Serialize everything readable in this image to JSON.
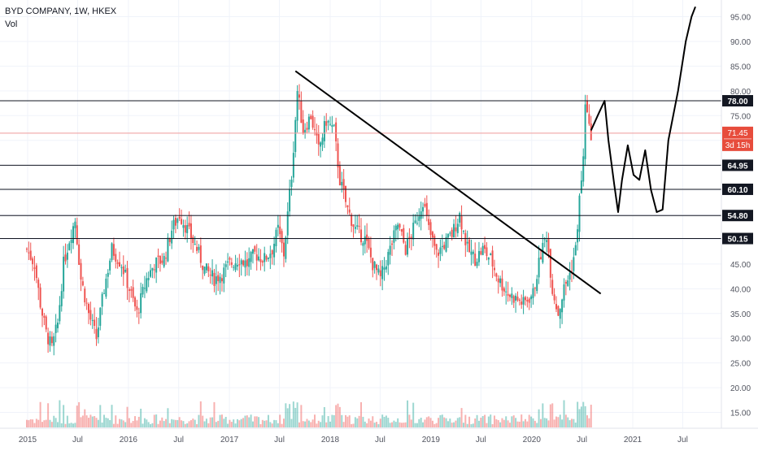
{
  "header": {
    "title": "BYD COMPANY, 1W, HKEX",
    "indicator": "Vol"
  },
  "colors": {
    "up": "#26a69a",
    "down": "#ef5350",
    "hline": "#131722",
    "trend": "#000000",
    "last_price_line": "#ef9a9a",
    "badge_dark": "#131722",
    "badge_red": "#e74c3c",
    "axis_text": "#50535e",
    "grid": "#f0f3fa"
  },
  "chart_data": {
    "type": "candlestick",
    "title": "BYD COMPANY, 1W, HKEX",
    "x_axis": {
      "tick_labels": [
        "2015",
        "Jul",
        "2016",
        "Jul",
        "2017",
        "Jul",
        "2018",
        "Jul",
        "2019",
        "Jul",
        "2020",
        "Jul",
        "2021",
        "Jul"
      ],
      "range": [
        "2014-12",
        "2021-10"
      ]
    },
    "y_axis": {
      "tick_labels": [
        "95.00",
        "90.00",
        "85.00",
        "80.00",
        "75.00",
        "70.00",
        "65.00",
        "60.00",
        "55.00",
        "50.00",
        "45.00",
        "40.00",
        "35.00",
        "30.00",
        "25.00",
        "20.00",
        "15.00"
      ],
      "range": [
        12.5,
        97.5
      ],
      "side": "right"
    },
    "grid": true,
    "price_series_weekly_close": [
      [
        "2014-12-29",
        48
      ],
      [
        "2015-01-26",
        45
      ],
      [
        "2015-02-16",
        37
      ],
      [
        "2015-03-09",
        31
      ],
      [
        "2015-03-30",
        28
      ],
      [
        "2015-04-20",
        33
      ],
      [
        "2015-05-11",
        45
      ],
      [
        "2015-06-01",
        50
      ],
      [
        "2015-06-22",
        54
      ],
      [
        "2015-07-13",
        42
      ],
      [
        "2015-08-10",
        35
      ],
      [
        "2015-09-07",
        30
      ],
      [
        "2015-10-05",
        40
      ],
      [
        "2015-11-02",
        48
      ],
      [
        "2015-12-07",
        45
      ],
      [
        "2016-01-04",
        40
      ],
      [
        "2016-02-01",
        35
      ],
      [
        "2016-03-07",
        42
      ],
      [
        "2016-04-04",
        45
      ],
      [
        "2016-05-09",
        46
      ],
      [
        "2016-06-06",
        52
      ],
      [
        "2016-07-04",
        55
      ],
      [
        "2016-08-01",
        52
      ],
      [
        "2016-09-05",
        48
      ],
      [
        "2016-10-03",
        44
      ],
      [
        "2016-11-07",
        42
      ],
      [
        "2016-12-05",
        43
      ],
      [
        "2017-01-02",
        45
      ],
      [
        "2017-02-06",
        46
      ],
      [
        "2017-03-06",
        45
      ],
      [
        "2017-04-03",
        47
      ],
      [
        "2017-05-08",
        46
      ],
      [
        "2017-06-05",
        48
      ],
      [
        "2017-06-26",
        52
      ],
      [
        "2017-07-17",
        47
      ],
      [
        "2017-08-14",
        63
      ],
      [
        "2017-09-04",
        80
      ],
      [
        "2017-09-25",
        72
      ],
      [
        "2017-10-23",
        75
      ],
      [
        "2017-11-20",
        68
      ],
      [
        "2017-12-18",
        74
      ],
      [
        "2018-01-15",
        72
      ],
      [
        "2018-02-05",
        62
      ],
      [
        "2018-03-05",
        56
      ],
      [
        "2018-04-02",
        52
      ],
      [
        "2018-05-07",
        50
      ],
      [
        "2018-06-04",
        45
      ],
      [
        "2018-07-02",
        42
      ],
      [
        "2018-08-06",
        48
      ],
      [
        "2018-09-03",
        53
      ],
      [
        "2018-10-01",
        48
      ],
      [
        "2018-11-05",
        53
      ],
      [
        "2018-12-03",
        58
      ],
      [
        "2018-12-24",
        52
      ],
      [
        "2019-01-21",
        47
      ],
      [
        "2019-02-18",
        49
      ],
      [
        "2019-03-18",
        51
      ],
      [
        "2019-04-15",
        55
      ],
      [
        "2019-05-13",
        48
      ],
      [
        "2019-06-10",
        46
      ],
      [
        "2019-07-08",
        48
      ],
      [
        "2019-08-05",
        46
      ],
      [
        "2019-09-02",
        42
      ],
      [
        "2019-10-07",
        39
      ],
      [
        "2019-11-04",
        38
      ],
      [
        "2019-12-02",
        37
      ],
      [
        "2020-01-06",
        39
      ],
      [
        "2020-02-03",
        47
      ],
      [
        "2020-02-24",
        51
      ],
      [
        "2020-03-16",
        40
      ],
      [
        "2020-04-06",
        35
      ],
      [
        "2020-04-27",
        40
      ],
      [
        "2020-05-18",
        43
      ],
      [
        "2020-06-08",
        48
      ],
      [
        "2020-06-22",
        58
      ],
      [
        "2020-07-06",
        66
      ],
      [
        "2020-07-13",
        78
      ],
      [
        "2020-07-27",
        72
      ],
      [
        "2020-08-03",
        71.45
      ]
    ],
    "horizontal_levels": [
      78.0,
      64.95,
      60.1,
      54.8,
      50.15
    ],
    "last_price": {
      "label": "71.45",
      "countdown": "3d 15h",
      "value": 71.45
    },
    "trendline": {
      "from": [
        "2017-08-28",
        84
      ],
      "to": [
        "2020-09-07",
        39
      ]
    },
    "projection_drawing": [
      [
        "2020-08-03",
        72
      ],
      [
        "2020-08-31",
        75.5
      ],
      [
        "2020-09-21",
        78
      ],
      [
        "2020-10-05",
        70
      ],
      [
        "2020-10-26",
        61
      ],
      [
        "2020-11-09",
        55.5
      ],
      [
        "2020-11-23",
        62
      ],
      [
        "2020-12-14",
        69
      ],
      [
        "2021-01-04",
        63
      ],
      [
        "2021-01-25",
        62
      ],
      [
        "2021-02-15",
        68
      ],
      [
        "2021-03-08",
        60
      ],
      [
        "2021-03-29",
        55.5
      ],
      [
        "2021-04-19",
        56
      ],
      [
        "2021-05-10",
        70
      ],
      [
        "2021-06-14",
        80
      ],
      [
        "2021-07-12",
        90
      ],
      [
        "2021-08-02",
        95
      ],
      [
        "2021-08-16",
        97
      ]
    ],
    "volume_indicator": "Vol"
  }
}
